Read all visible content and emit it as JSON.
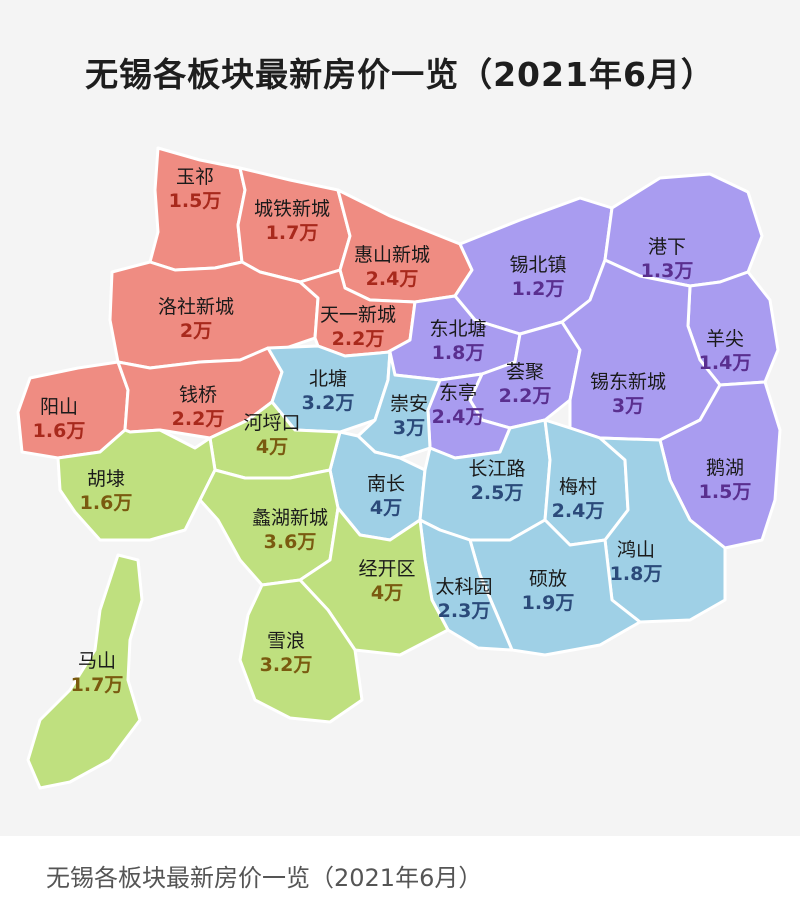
{
  "title": "无锡各板块最新房价一览（2021年6月）",
  "caption": "无锡各板块最新房价一览（2021年6月）",
  "colors": {
    "red_region": "#ef8c82",
    "purple_region": "#a99cf0",
    "teal_region": "#9fd0e6",
    "green_region": "#bfe07f",
    "price_red": "#a8291c",
    "price_purple": "#5a2f8f",
    "price_teal": "#2b4a7a",
    "price_green": "#7a5a10"
  },
  "districts": [
    {
      "name": "玉祁",
      "price": "1.5万"
    },
    {
      "name": "城铁新城",
      "price": "1.7万"
    },
    {
      "name": "惠山新城",
      "price": "2.4万"
    },
    {
      "name": "锡北镇",
      "price": "1.2万"
    },
    {
      "name": "港下",
      "price": "1.3万"
    },
    {
      "name": "洛社新城",
      "price": "2万"
    },
    {
      "name": "天一新城",
      "price": "2.2万"
    },
    {
      "name": "东北塘",
      "price": "1.8万"
    },
    {
      "name": "羊尖",
      "price": "1.4万"
    },
    {
      "name": "阳山",
      "price": "1.6万"
    },
    {
      "name": "钱桥",
      "price": "2.2万"
    },
    {
      "name": "北塘",
      "price": "3.2万"
    },
    {
      "name": "荟聚",
      "price": "2.2万"
    },
    {
      "name": "锡东新城",
      "price": "3万"
    },
    {
      "name": "崇安",
      "price": "3万"
    },
    {
      "name": "东亭",
      "price": "2.4万"
    },
    {
      "name": "河埒口",
      "price": "4万"
    },
    {
      "name": "胡埭",
      "price": "1.6万"
    },
    {
      "name": "南长",
      "price": "4万"
    },
    {
      "name": "长江路",
      "price": "2.5万"
    },
    {
      "name": "梅村",
      "price": "2.4万"
    },
    {
      "name": "鹅湖",
      "price": "1.5万"
    },
    {
      "name": "蠡湖新城",
      "price": "3.6万"
    },
    {
      "name": "鸿山",
      "price": "1.8万"
    },
    {
      "name": "经开区",
      "price": "4万"
    },
    {
      "name": "太科园",
      "price": "2.3万"
    },
    {
      "name": "硕放",
      "price": "1.9万"
    },
    {
      "name": "马山",
      "price": "1.7万"
    },
    {
      "name": "雪浪",
      "price": "3.2万"
    }
  ]
}
